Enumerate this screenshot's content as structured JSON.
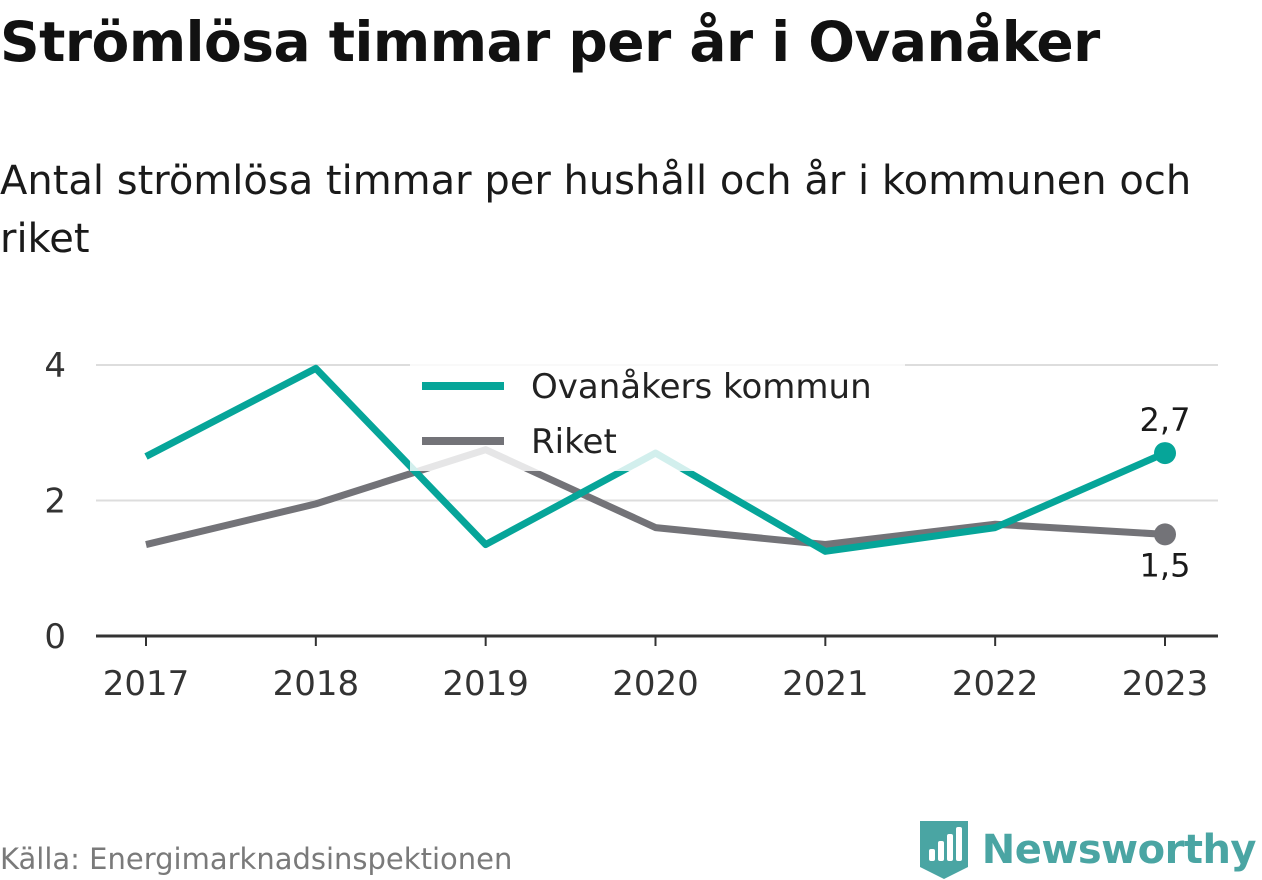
{
  "header": {
    "title": "Strömlösa timmar per år i Ovanåker",
    "subtitle": "Antal strömlösa timmar per hushåll och år i kommunen och riket"
  },
  "footer": {
    "source": "Källa: Energimarknadsinspektionen",
    "brand": "Newsworthy"
  },
  "colors": {
    "ovanaker": "#06a599",
    "riket": "#737378",
    "grid": "#dddddd",
    "axis": "#333333",
    "brand": "#4aa5a3"
  },
  "chart_data": {
    "type": "line",
    "x": [
      "2017",
      "2018",
      "2019",
      "2020",
      "2021",
      "2022",
      "2023"
    ],
    "ylim": [
      0,
      4
    ],
    "yticks": [
      0,
      2,
      4
    ],
    "grid": true,
    "legend_position": "top-center",
    "series": [
      {
        "name": "Ovanåkers kommun",
        "values": [
          2.65,
          3.95,
          1.35,
          2.7,
          1.25,
          1.6,
          2.7
        ],
        "end_label": "2,7"
      },
      {
        "name": "Riket",
        "values": [
          1.35,
          1.95,
          2.75,
          1.6,
          1.35,
          1.65,
          1.5
        ],
        "end_label": "1,5"
      }
    ]
  }
}
